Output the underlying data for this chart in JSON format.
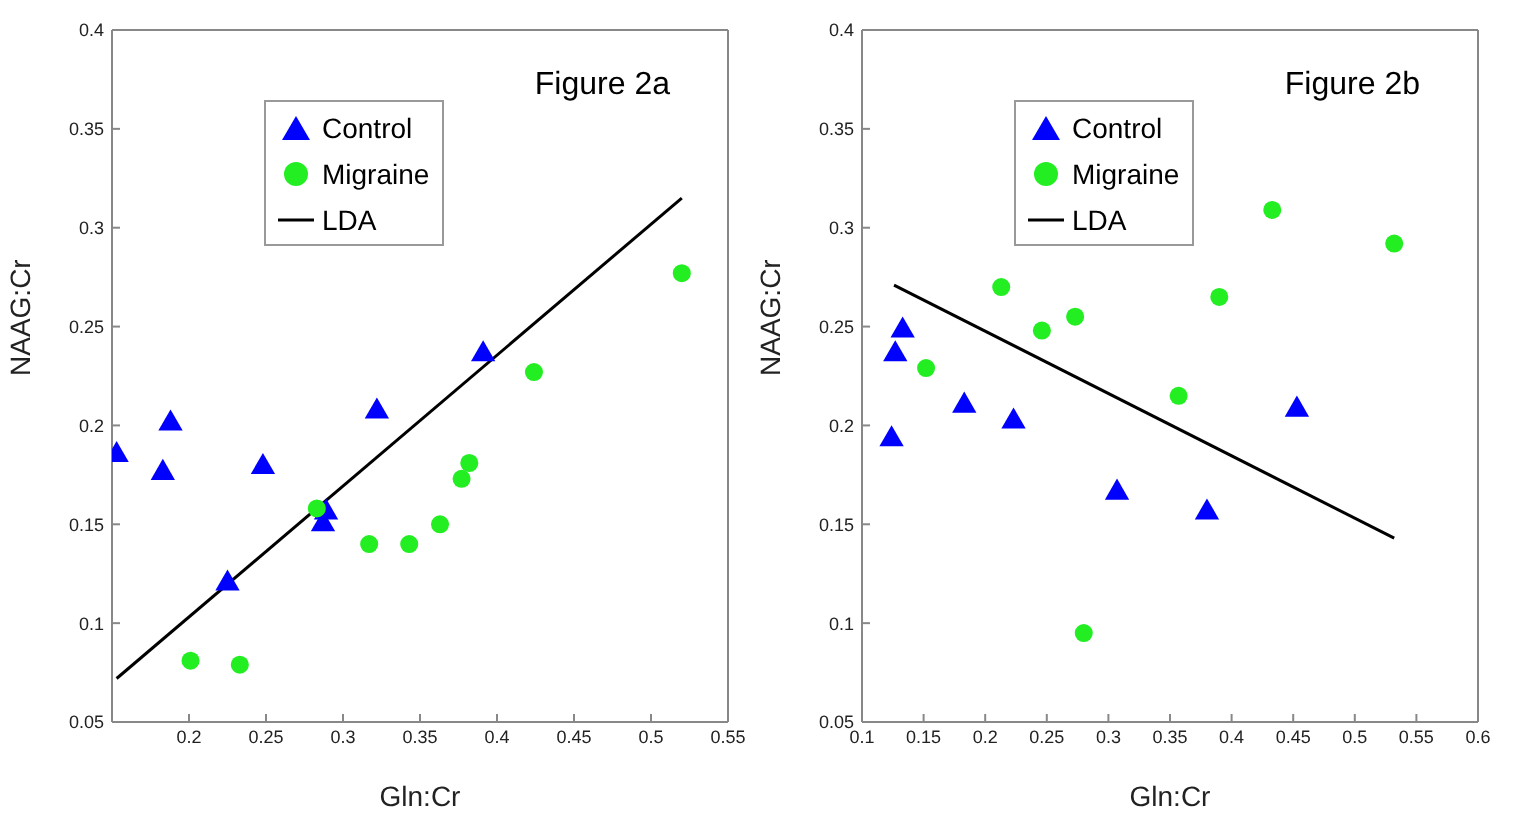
{
  "chart_data": [
    {
      "type": "scatter",
      "title": "Figure 2a",
      "xlabel": "Gln:Cr",
      "ylabel": "NAAG:Cr",
      "xlim": [
        0.15,
        0.55
      ],
      "xticks": [
        0.2,
        0.25,
        0.3,
        0.35,
        0.4,
        0.45,
        0.5,
        0.55
      ],
      "ylim": [
        0.05,
        0.4
      ],
      "yticks": [
        0.05,
        0.1,
        0.15,
        0.2,
        0.25,
        0.3,
        0.35,
        0.4
      ],
      "grid": false,
      "legend": "top",
      "series": [
        {
          "name": "Control",
          "marker": "triangle",
          "color": "#0000ff",
          "x": [
            0.153,
            0.183,
            0.188,
            0.248,
            0.225,
            0.287,
            0.289,
            0.322,
            0.391
          ],
          "values": [
            0.185,
            0.176,
            0.201,
            0.179,
            0.12,
            0.15,
            0.156,
            0.207,
            0.236
          ]
        },
        {
          "name": "Migraine",
          "marker": "circle",
          "color": "#22ee22",
          "x": [
            0.201,
            0.233,
            0.283,
            0.317,
            0.343,
            0.363,
            0.377,
            0.382,
            0.424,
            0.52
          ],
          "values": [
            0.081,
            0.079,
            0.158,
            0.14,
            0.14,
            0.15,
            0.173,
            0.181,
            0.227,
            0.277
          ]
        },
        {
          "name": "LDA",
          "type": "line",
          "marker": "none",
          "color": "#000000",
          "x": [
            0.153,
            0.52
          ],
          "values": [
            0.072,
            0.315
          ]
        }
      ]
    },
    {
      "type": "scatter",
      "title": "Figure 2b",
      "xlabel": "Gln:Cr",
      "ylabel": "NAAG:Cr",
      "xlim": [
        0.1,
        0.6
      ],
      "xticks": [
        0.1,
        0.15,
        0.2,
        0.25,
        0.3,
        0.35,
        0.4,
        0.45,
        0.5,
        0.55,
        0.6
      ],
      "ylim": [
        0.05,
        0.4
      ],
      "yticks": [
        0.05,
        0.1,
        0.15,
        0.2,
        0.25,
        0.3,
        0.35,
        0.4
      ],
      "grid": false,
      "legend": "top",
      "series": [
        {
          "name": "Control",
          "marker": "triangle",
          "color": "#0000ff",
          "x": [
            0.124,
            0.127,
            0.133,
            0.183,
            0.223,
            0.307,
            0.38,
            0.453
          ],
          "values": [
            0.193,
            0.236,
            0.248,
            0.21,
            0.202,
            0.166,
            0.156,
            0.208
          ]
        },
        {
          "name": "Migraine",
          "marker": "circle",
          "color": "#22ee22",
          "x": [
            0.152,
            0.213,
            0.246,
            0.273,
            0.28,
            0.357,
            0.39,
            0.433,
            0.532
          ],
          "values": [
            0.229,
            0.27,
            0.248,
            0.255,
            0.095,
            0.215,
            0.265,
            0.309,
            0.292
          ]
        },
        {
          "name": "LDA",
          "type": "line",
          "marker": "none",
          "color": "#000000",
          "x": [
            0.126,
            0.532
          ],
          "values": [
            0.271,
            0.143
          ]
        }
      ]
    }
  ]
}
